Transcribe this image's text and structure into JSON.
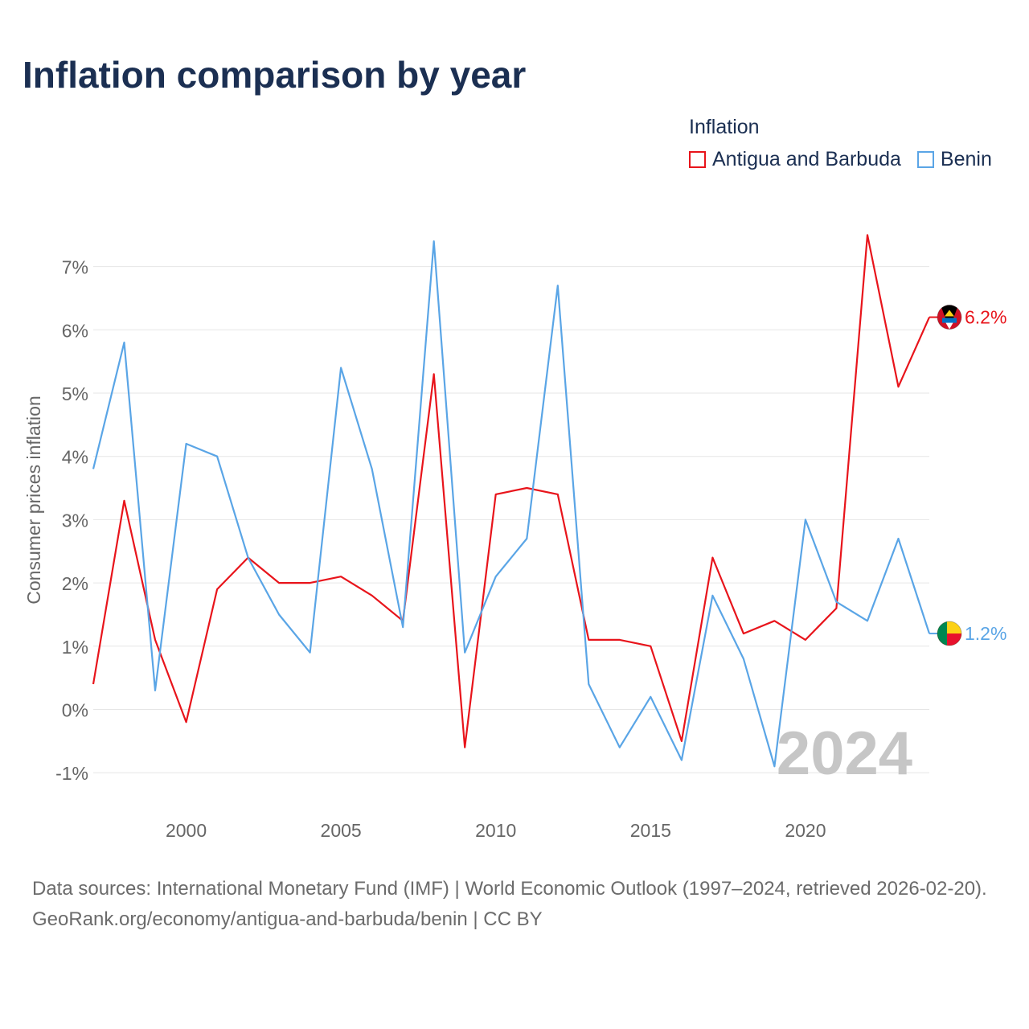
{
  "header": {
    "title": "Inflation comparison by year"
  },
  "legend": {
    "title": "Inflation",
    "items": [
      {
        "label": "Antigua and Barbuda",
        "color": "#e8141b"
      },
      {
        "label": "Benin",
        "color": "#5aa5e6"
      }
    ]
  },
  "chart_data": {
    "type": "line",
    "title": "Inflation comparison by year",
    "xlabel": "",
    "ylabel": "Consumer prices inflation",
    "x": [
      1997,
      1998,
      1999,
      2000,
      2001,
      2002,
      2003,
      2004,
      2005,
      2006,
      2007,
      2008,
      2009,
      2010,
      2011,
      2012,
      2013,
      2014,
      2015,
      2016,
      2017,
      2018,
      2019,
      2020,
      2021,
      2022,
      2023,
      2024
    ],
    "xlim": [
      1997,
      2024
    ],
    "ylim": [
      -1,
      7.5
    ],
    "yticks": [
      -1,
      0,
      1,
      2,
      3,
      4,
      5,
      6,
      7
    ],
    "ytick_labels": [
      "-1%",
      "0%",
      "1%",
      "2%",
      "3%",
      "4%",
      "5%",
      "6%",
      "7%"
    ],
    "xticks": [
      2000,
      2005,
      2010,
      2015,
      2020
    ],
    "xtick_labels": [
      "2000",
      "2005",
      "2010",
      "2015",
      "2020"
    ],
    "grid": true,
    "watermark_year": "2024",
    "series": [
      {
        "name": "Antigua and Barbuda",
        "color": "#e8141b",
        "end_label": "6.2%",
        "flag_icon": "antigua-and-barbuda-flag-icon",
        "values": [
          0.4,
          3.3,
          1.1,
          -0.2,
          1.9,
          2.4,
          2.0,
          2.0,
          2.1,
          1.8,
          1.4,
          5.3,
          -0.6,
          3.4,
          3.5,
          3.4,
          1.1,
          1.1,
          1.0,
          -0.5,
          2.4,
          1.2,
          1.4,
          1.1,
          1.6,
          7.5,
          5.1,
          6.2
        ]
      },
      {
        "name": "Benin",
        "color": "#5aa5e6",
        "end_label": "1.2%",
        "flag_icon": "benin-flag-icon",
        "values": [
          3.8,
          5.8,
          0.3,
          4.2,
          4.0,
          2.4,
          1.5,
          0.9,
          5.4,
          3.8,
          1.3,
          7.4,
          0.9,
          2.1,
          2.7,
          6.7,
          0.4,
          -0.6,
          0.2,
          -0.8,
          1.8,
          0.8,
          -0.9,
          3.0,
          1.7,
          1.4,
          2.7,
          1.2
        ]
      }
    ]
  },
  "footer": {
    "sources": "Data sources: International Monetary Fund (IMF) | World Economic Outlook (1997–2024, retrieved 2026-02-20).",
    "credit": "GeoRank.org/economy/antigua-and-barbuda/benin | CC BY"
  }
}
